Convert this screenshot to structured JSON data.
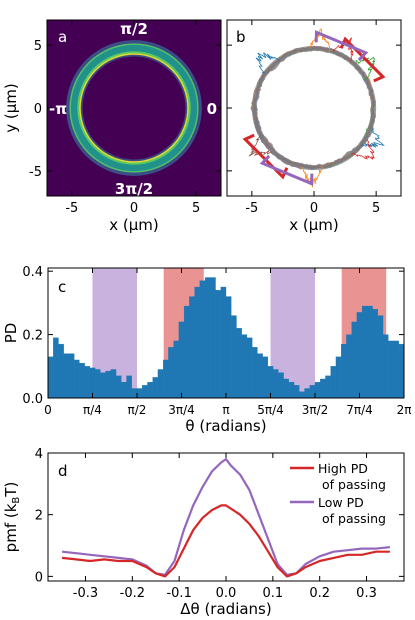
{
  "chart_data": [
    {
      "panel": "a",
      "type": "heatmap",
      "xlabel": "x (µm)",
      "ylabel": "y (µm)",
      "xlim": [
        -7,
        7
      ],
      "ylim": [
        -7,
        7
      ],
      "xticks": [
        -5,
        0,
        5
      ],
      "yticks": [
        -5,
        0,
        5
      ],
      "ring_radius_um": [
        4.3,
        5.3
      ],
      "angle_labels": {
        "top": "π/2",
        "left": "-π",
        "right": "0",
        "bottom": "3π/2"
      },
      "colormap": [
        "#440154",
        "#3b528b",
        "#21918c",
        "#5ec962",
        "#fde725"
      ]
    },
    {
      "panel": "b",
      "type": "scatter",
      "xlabel": "x (µm)",
      "xlim": [
        -7,
        7
      ],
      "ylim": [
        -7,
        7
      ],
      "xticks": [
        -5,
        0,
        5
      ],
      "ring_radius_um": 4.8,
      "trajectory_colors": [
        "#7f7f7f",
        "#ff7f0e",
        "#2ca02c",
        "#d62728",
        "#1f77b4",
        "#9467bd",
        "#8c564b"
      ],
      "region_markers": [
        {
          "angle_center": 0.785,
          "color": "#d62728"
        },
        {
          "angle_center": 1.178,
          "color": "#9467bd"
        },
        {
          "angle_center": 3.927,
          "color": "#d62728"
        },
        {
          "angle_center": 4.32,
          "color": "#9467bd"
        }
      ]
    },
    {
      "panel": "c",
      "type": "bar",
      "xlabel": "θ (radians)",
      "ylabel": "PD",
      "xlim": [
        0,
        6.2832
      ],
      "ylim": [
        0,
        0.41
      ],
      "yticks": [
        0.0,
        0.2,
        0.4
      ],
      "xticks": [
        "0",
        "π/4",
        "π/2",
        "3π/4",
        "π",
        "5π/4",
        "3π/2",
        "7π/4",
        "2π"
      ],
      "bar_color": "#1f77b4",
      "values": [
        0.13,
        0.19,
        0.17,
        0.14,
        0.14,
        0.12,
        0.11,
        0.1,
        0.095,
        0.09,
        0.08,
        0.085,
        0.09,
        0.07,
        0.05,
        0.07,
        0.03,
        0.03,
        0.04,
        0.05,
        0.065,
        0.09,
        0.12,
        0.16,
        0.18,
        0.24,
        0.29,
        0.32,
        0.35,
        0.37,
        0.38,
        0.38,
        0.34,
        0.35,
        0.32,
        0.26,
        0.22,
        0.2,
        0.19,
        0.16,
        0.14,
        0.13,
        0.1,
        0.09,
        0.08,
        0.06,
        0.05,
        0.04,
        0.02,
        0.03,
        0.04,
        0.05,
        0.06,
        0.07,
        0.1,
        0.13,
        0.17,
        0.2,
        0.24,
        0.27,
        0.29,
        0.29,
        0.28,
        0.26,
        0.2,
        0.18,
        0.18,
        0.17
      ],
      "shaded_regions": [
        {
          "from": 0.785,
          "to": 1.571,
          "color": "#9467bd"
        },
        {
          "from": 2.042,
          "to": 2.749,
          "color": "#d62728"
        },
        {
          "from": 3.927,
          "to": 4.712,
          "color": "#9467bd"
        },
        {
          "from": 5.184,
          "to": 5.969,
          "color": "#d62728"
        }
      ]
    },
    {
      "panel": "d",
      "type": "line",
      "xlabel": "Δθ (radians)",
      "ylabel": "pmf (k",
      "ylabel_sub": "B",
      "ylabel_end": "T)",
      "xlim": [
        -0.38,
        0.38
      ],
      "ylim": [
        -0.15,
        4.0
      ],
      "xticks": [
        "-0.3",
        "-0.2",
        "-0.1",
        "0.0",
        "0.1",
        "0.2",
        "0.3"
      ],
      "yticks": [
        "0",
        "2",
        "4"
      ],
      "legend": "top-right",
      "series": [
        {
          "name": "High PD of passing",
          "legend_lines": [
            "High PD",
            "of passing"
          ],
          "color": "#d62728",
          "x": [
            -0.35,
            -0.32,
            -0.29,
            -0.26,
            -0.23,
            -0.2,
            -0.17,
            -0.15,
            -0.13,
            -0.11,
            -0.09,
            -0.07,
            -0.05,
            -0.03,
            -0.01,
            0.0,
            0.01,
            0.03,
            0.05,
            0.07,
            0.09,
            0.11,
            0.13,
            0.15,
            0.17,
            0.2,
            0.23,
            0.26,
            0.29,
            0.32,
            0.35
          ],
          "y": [
            0.6,
            0.55,
            0.5,
            0.55,
            0.5,
            0.5,
            0.3,
            0.1,
            0.0,
            0.3,
            0.9,
            1.5,
            1.9,
            2.15,
            2.3,
            2.3,
            2.2,
            2.0,
            1.7,
            1.3,
            0.8,
            0.3,
            0.0,
            0.1,
            0.3,
            0.5,
            0.6,
            0.7,
            0.7,
            0.8,
            0.8
          ]
        },
        {
          "name": "Low PD of passing",
          "legend_lines": [
            "Low PD",
            "of passing"
          ],
          "color": "#9467bd",
          "x": [
            -0.35,
            -0.32,
            -0.29,
            -0.26,
            -0.23,
            -0.2,
            -0.17,
            -0.15,
            -0.13,
            -0.11,
            -0.09,
            -0.07,
            -0.05,
            -0.03,
            -0.01,
            0.0,
            0.01,
            0.03,
            0.05,
            0.07,
            0.09,
            0.11,
            0.13,
            0.15,
            0.17,
            0.2,
            0.23,
            0.26,
            0.29,
            0.32,
            0.35
          ],
          "y": [
            0.8,
            0.75,
            0.7,
            0.65,
            0.6,
            0.55,
            0.35,
            0.1,
            0.05,
            0.5,
            1.5,
            2.3,
            2.9,
            3.4,
            3.7,
            3.8,
            3.6,
            3.3,
            2.8,
            2.0,
            1.2,
            0.4,
            0.05,
            0.1,
            0.4,
            0.65,
            0.8,
            0.85,
            0.9,
            0.9,
            0.95
          ]
        }
      ]
    }
  ],
  "panel_labels": {
    "a": "a",
    "b": "b",
    "c": "c",
    "d": "d"
  }
}
